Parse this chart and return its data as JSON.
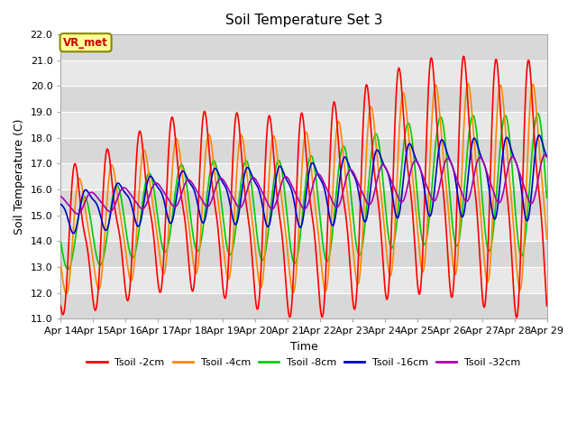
{
  "title": "Soil Temperature Set 3",
  "xlabel": "Time",
  "ylabel": "Soil Temperature (C)",
  "ylim": [
    11.0,
    22.0
  ],
  "yticks": [
    11.0,
    12.0,
    13.0,
    14.0,
    15.0,
    16.0,
    17.0,
    18.0,
    19.0,
    20.0,
    21.0,
    22.0
  ],
  "xtick_labels": [
    "Apr 14",
    "Apr 15",
    "Apr 16",
    "Apr 17",
    "Apr 18",
    "Apr 19",
    "Apr 20",
    "Apr 21",
    "Apr 22",
    "Apr 23",
    "Apr 24",
    "Apr 25",
    "Apr 26",
    "Apr 27",
    "Apr 28",
    "Apr 29"
  ],
  "colors": {
    "Tsoil -2cm": "#ff0000",
    "Tsoil -4cm": "#ff8800",
    "Tsoil -8cm": "#00cc00",
    "Tsoil -16cm": "#0000cc",
    "Tsoil -32cm": "#aa00aa"
  },
  "annotation_text": "VR_met",
  "annotation_color": "#cc0000",
  "annotation_bg": "#ffff99",
  "annotation_border": "#888800",
  "fig_bg": "#ffffff",
  "plot_bg": "#e8e8e8",
  "grid_color": "#ffffff",
  "band_color_dark": "#d8d8d8",
  "band_color_light": "#e8e8e8"
}
